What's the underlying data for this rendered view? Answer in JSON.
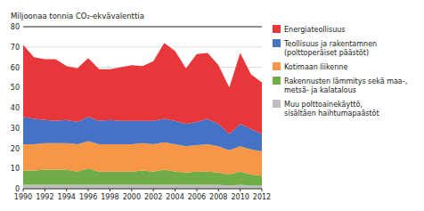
{
  "chart_data": {
    "type": "area",
    "stacked": true,
    "ylabel": "Miljoonaa tonnia CO₂-ekvävalenttia",
    "x": [
      1990,
      1991,
      1992,
      1993,
      1994,
      1995,
      1996,
      1997,
      1998,
      1999,
      2000,
      2001,
      2002,
      2003,
      2004,
      2005,
      2006,
      2007,
      2008,
      2009,
      2010,
      2011,
      2012
    ],
    "series": [
      {
        "name": "Muu polttoainekäyttö,\nsisältäen haihtumapaästöt",
        "color": "#bfbfbf",
        "values": [
          2.0,
          2.0,
          2.0,
          2.0,
          2.0,
          2.0,
          2.0,
          2.0,
          2.0,
          2.0,
          2.0,
          2.0,
          2.0,
          2.0,
          2.0,
          2.0,
          2.0,
          2.0,
          2.0,
          1.5,
          2.0,
          1.5,
          1.5
        ]
      },
      {
        "name": "Rakennusten lämmitys sekä maa-,\nmetsä- ja kalatalous",
        "color": "#70ad47",
        "values": [
          7.0,
          7.0,
          7.5,
          7.5,
          7.5,
          6.5,
          8.0,
          6.5,
          6.5,
          6.5,
          6.5,
          7.0,
          6.5,
          7.5,
          6.5,
          6.0,
          6.5,
          6.5,
          6.0,
          5.5,
          6.5,
          5.5,
          5.0
        ]
      },
      {
        "name": "Kotimaan liikenne",
        "color": "#f79646",
        "values": [
          13.0,
          13.0,
          13.0,
          13.0,
          13.0,
          13.5,
          13.5,
          13.5,
          13.5,
          13.5,
          13.5,
          13.5,
          13.5,
          13.5,
          13.5,
          13.0,
          13.0,
          13.5,
          13.0,
          12.0,
          12.5,
          12.5,
          12.0
        ]
      },
      {
        "name": "Teollisuus ja rakentamnen\n(polttoperäiset päästöt)",
        "color": "#4472c4",
        "values": [
          13.5,
          12.5,
          11.5,
          11.0,
          11.5,
          11.0,
          12.0,
          11.5,
          12.0,
          11.5,
          11.5,
          11.0,
          11.5,
          11.5,
          11.5,
          11.0,
          11.5,
          12.5,
          11.0,
          8.0,
          11.0,
          10.0,
          8.5
        ]
      },
      {
        "name": "Energiateollisuus",
        "color": "#e8373a",
        "values": [
          35.5,
          30.5,
          30.0,
          30.5,
          26.5,
          26.5,
          29.0,
          25.5,
          25.0,
          26.5,
          27.5,
          27.0,
          29.5,
          37.5,
          34.5,
          27.5,
          33.5,
          32.5,
          29.0,
          23.0,
          35.0,
          27.0,
          25.5
        ]
      }
    ],
    "xlim": [
      1990,
      2012
    ],
    "xticks": [
      1990,
      1992,
      1994,
      1996,
      1998,
      2000,
      2002,
      2004,
      2006,
      2008,
      2010,
      2012
    ],
    "ylim": [
      0,
      80
    ],
    "yticks": [
      0,
      10,
      20,
      30,
      40,
      50,
      60,
      70,
      80
    ],
    "grid": true,
    "legend": "right"
  }
}
